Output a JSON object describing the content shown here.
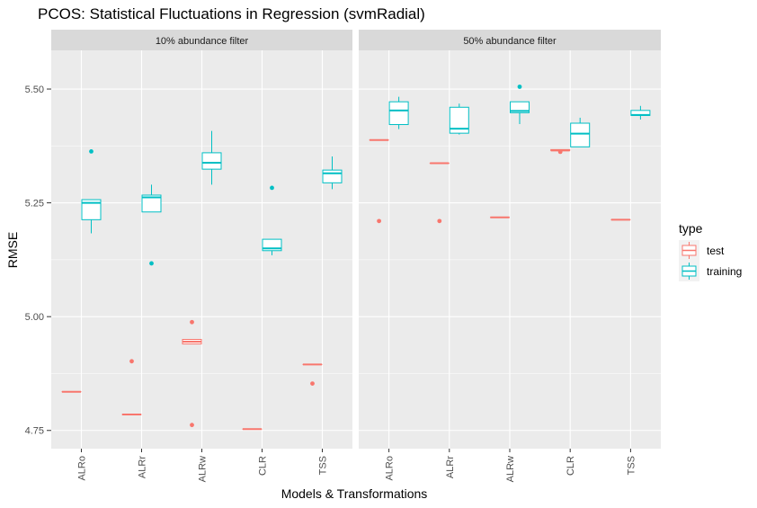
{
  "chart_data": {
    "type": "boxplot",
    "title": "PCOS: Statistical Fluctuations in Regression (svmRadial)",
    "xlabel": "Models & Transformations",
    "ylabel": "RMSE",
    "ylim": [
      4.71,
      5.585
    ],
    "yticks": [
      4.75,
      5.0,
      5.25,
      5.5
    ],
    "ytick_labels": [
      "4.75",
      "5.00",
      "5.25",
      "5.50"
    ],
    "categories": [
      "ALRo",
      "ALRr",
      "ALRw",
      "CLR",
      "TSS"
    ],
    "legend": {
      "title": "type",
      "position": "right",
      "entries": [
        "test",
        "training"
      ]
    },
    "colors": {
      "test": "#F8766D",
      "training": "#00BFC4",
      "panel_bg": "#EBEBEB",
      "strip_bg": "#D9D9D9",
      "grid": "#FFFFFF"
    },
    "panels": [
      {
        "label": "10% abundance filter",
        "series": {
          "test": [
            {
              "category": "ALRo",
              "min": 4.835,
              "q1": 4.835,
              "median": 4.835,
              "q3": 4.835,
              "max": 4.835,
              "outliers": []
            },
            {
              "category": "ALRr",
              "min": 4.785,
              "q1": 4.785,
              "median": 4.785,
              "q3": 4.785,
              "max": 4.785,
              "outliers": [
                4.902
              ]
            },
            {
              "category": "ALRw",
              "min": 4.94,
              "q1": 4.94,
              "median": 4.945,
              "q3": 4.95,
              "max": 4.95,
              "outliers": [
                4.988,
                4.762
              ]
            },
            {
              "category": "CLR",
              "min": 4.753,
              "q1": 4.753,
              "median": 4.753,
              "q3": 4.753,
              "max": 4.753,
              "outliers": []
            },
            {
              "category": "TSS",
              "min": 4.895,
              "q1": 4.895,
              "median": 4.895,
              "q3": 4.895,
              "max": 4.895,
              "outliers": [
                4.853
              ]
            }
          ],
          "training": [
            {
              "category": "ALRo",
              "min": 5.183,
              "q1": 5.213,
              "median": 5.25,
              "q3": 5.257,
              "max": 5.257,
              "outliers": [
                5.363
              ]
            },
            {
              "category": "ALRr",
              "min": 5.23,
              "q1": 5.23,
              "median": 5.262,
              "q3": 5.267,
              "max": 5.29,
              "outliers": [
                5.117
              ]
            },
            {
              "category": "ALRw",
              "min": 5.29,
              "q1": 5.324,
              "median": 5.338,
              "q3": 5.36,
              "max": 5.408,
              "outliers": []
            },
            {
              "category": "CLR",
              "min": 5.135,
              "q1": 5.145,
              "median": 5.15,
              "q3": 5.17,
              "max": 5.17,
              "outliers": [
                5.283
              ]
            },
            {
              "category": "TSS",
              "min": 5.28,
              "q1": 5.294,
              "median": 5.315,
              "q3": 5.322,
              "max": 5.352,
              "outliers": []
            }
          ]
        }
      },
      {
        "label": "50% abundance filter",
        "series": {
          "test": [
            {
              "category": "ALRo",
              "min": 5.388,
              "q1": 5.388,
              "median": 5.388,
              "q3": 5.388,
              "max": 5.388,
              "outliers": [
                5.21
              ]
            },
            {
              "category": "ALRr",
              "min": 5.337,
              "q1": 5.337,
              "median": 5.337,
              "q3": 5.337,
              "max": 5.337,
              "outliers": [
                5.21
              ]
            },
            {
              "category": "ALRw",
              "min": 5.218,
              "q1": 5.218,
              "median": 5.218,
              "q3": 5.218,
              "max": 5.218,
              "outliers": []
            },
            {
              "category": "CLR",
              "min": 5.365,
              "q1": 5.365,
              "median": 5.365,
              "q3": 5.367,
              "max": 5.367,
              "outliers": [
                5.362
              ]
            },
            {
              "category": "TSS",
              "min": 5.213,
              "q1": 5.213,
              "median": 5.213,
              "q3": 5.213,
              "max": 5.213,
              "outliers": []
            }
          ],
          "training": [
            {
              "category": "ALRo",
              "min": 5.412,
              "q1": 5.422,
              "median": 5.453,
              "q3": 5.472,
              "max": 5.483,
              "outliers": []
            },
            {
              "category": "ALRr",
              "min": 5.4,
              "q1": 5.403,
              "median": 5.413,
              "q3": 5.46,
              "max": 5.468,
              "outliers": []
            },
            {
              "category": "ALRw",
              "min": 5.423,
              "q1": 5.448,
              "median": 5.452,
              "q3": 5.472,
              "max": 5.472,
              "outliers": [
                5.505
              ]
            },
            {
              "category": "CLR",
              "min": 5.373,
              "q1": 5.373,
              "median": 5.402,
              "q3": 5.425,
              "max": 5.437,
              "outliers": []
            },
            {
              "category": "TSS",
              "min": 5.433,
              "q1": 5.442,
              "median": 5.443,
              "q3": 5.453,
              "max": 5.463,
              "outliers": []
            }
          ]
        }
      }
    ]
  }
}
